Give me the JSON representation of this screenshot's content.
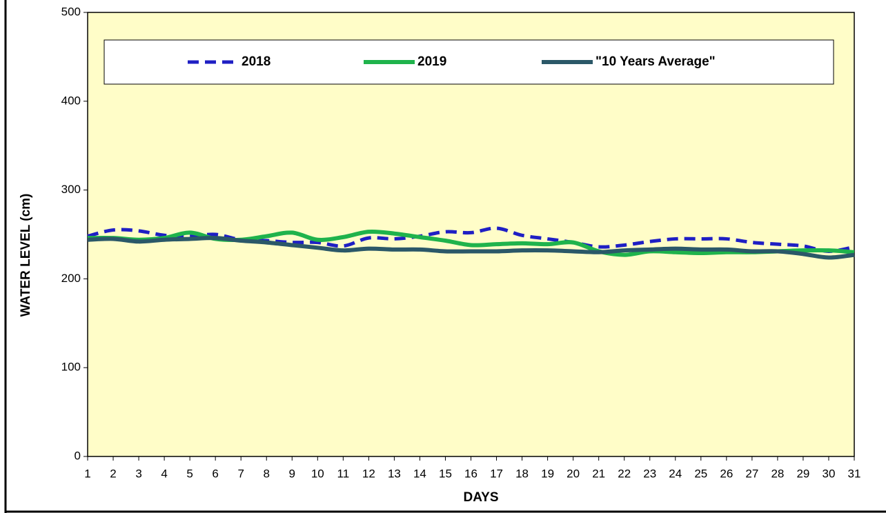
{
  "chart_data": {
    "type": "line",
    "x_label": "DAYS",
    "y_label": "WATER LEVEL (cm)",
    "x": [
      1,
      2,
      3,
      4,
      5,
      6,
      7,
      8,
      9,
      10,
      11,
      12,
      13,
      14,
      15,
      16,
      17,
      18,
      19,
      20,
      21,
      22,
      23,
      24,
      25,
      26,
      27,
      28,
      29,
      30,
      31
    ],
    "xlim": [
      1,
      31
    ],
    "xticks": [
      1,
      2,
      3,
      4,
      5,
      6,
      7,
      8,
      9,
      10,
      11,
      12,
      13,
      14,
      15,
      16,
      17,
      18,
      19,
      20,
      21,
      22,
      23,
      24,
      25,
      26,
      27,
      28,
      29,
      30,
      31
    ],
    "ylim": [
      0,
      500
    ],
    "yticks": [
      0,
      100,
      200,
      300,
      400,
      500
    ],
    "legend": "top",
    "grid": false,
    "series": [
      {
        "name": "2018",
        "color": "#1f1fc4",
        "dashed": true,
        "values": [
          248,
          255,
          254,
          249,
          248,
          250,
          244,
          243,
          241,
          241,
          237,
          246,
          245,
          248,
          253,
          252,
          257,
          249,
          245,
          241,
          236,
          238,
          242,
          245,
          245,
          245,
          241,
          239,
          237,
          231,
          236
        ]
      },
      {
        "name": "2019",
        "color": "#1fb34c",
        "dashed": false,
        "values": [
          246,
          246,
          244,
          246,
          252,
          245,
          244,
          248,
          252,
          244,
          247,
          253,
          251,
          247,
          243,
          238,
          239,
          240,
          239,
          241,
          231,
          227,
          231,
          230,
          229,
          230,
          230,
          231,
          232,
          232,
          230
        ]
      },
      {
        "name": "\"10 Years Average\"",
        "color": "#2b5868",
        "dashed": false,
        "values": [
          244,
          245,
          242,
          244,
          245,
          246,
          243,
          241,
          238,
          235,
          232,
          234,
          233,
          233,
          231,
          231,
          231,
          232,
          232,
          231,
          230,
          232,
          233,
          234,
          233,
          233,
          231,
          231,
          228,
          224,
          227
        ]
      }
    ]
  }
}
